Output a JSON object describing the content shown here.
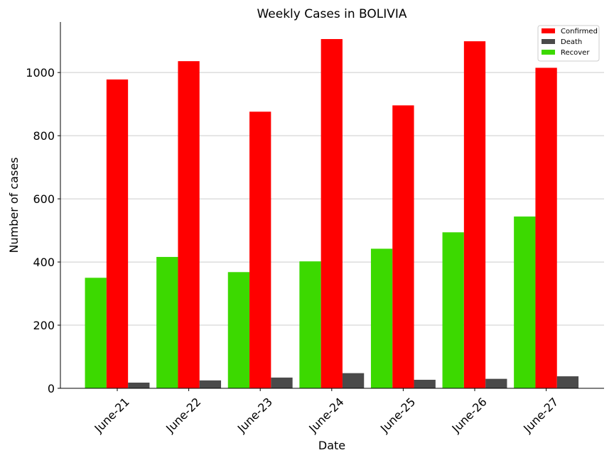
{
  "chart_data": {
    "type": "bar",
    "title": "Weekly Cases in BOLIVIA",
    "xlabel": "Date",
    "ylabel": "Number of cases",
    "categories": [
      "June-21",
      "June-22",
      "June-23",
      "June-24",
      "June-25",
      "June-26",
      "June-27"
    ],
    "ylim": [
      0,
      1160
    ],
    "yticks": [
      0,
      200,
      400,
      600,
      800,
      1000
    ],
    "grid": "horizontal",
    "legend_position": "top-right",
    "series": [
      {
        "name": "Recover",
        "color": "#3cd900",
        "values": [
          350,
          416,
          368,
          402,
          442,
          494,
          544
        ]
      },
      {
        "name": "Confirmed",
        "color": "#ff0000",
        "values": [
          978,
          1036,
          876,
          1106,
          896,
          1099,
          1015
        ]
      },
      {
        "name": "Death",
        "color": "#4a4a4a",
        "values": [
          18,
          25,
          34,
          48,
          27,
          30,
          38
        ]
      }
    ],
    "legend_order": [
      "Confirmed",
      "Death",
      "Recover"
    ]
  }
}
